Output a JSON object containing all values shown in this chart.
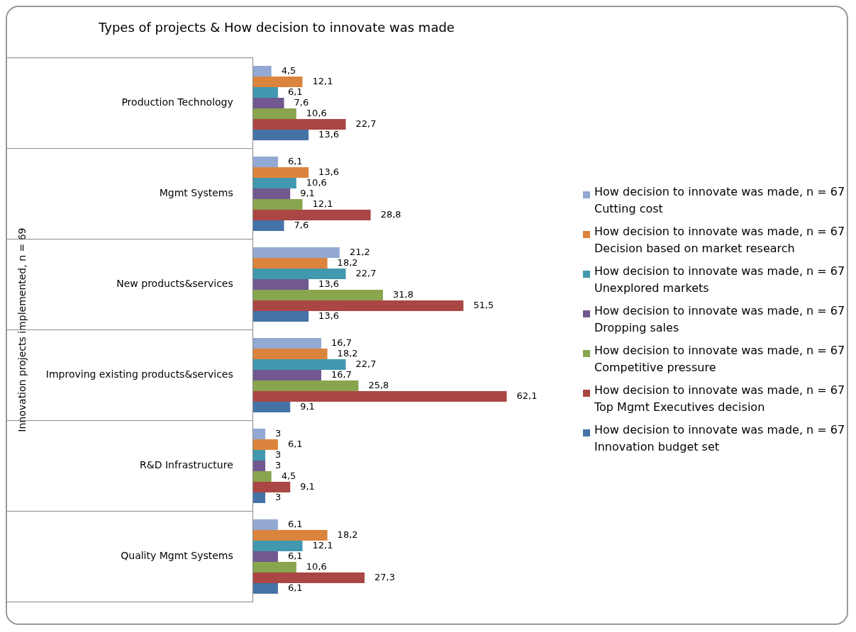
{
  "chart_data": {
    "type": "bar",
    "orientation": "horizontal",
    "title": "Types of projects & How decision to innovate was made",
    "ylabel": "Innovation projects implemented, n = 69",
    "categories": [
      "Production Technology",
      "Mgmt Systems",
      "New products&services",
      "Improving existing products&services",
      "R&D Infrastructure",
      "Quality Mgmt Systems"
    ],
    "legend": "right",
    "grid": "y",
    "series": [
      {
        "name": "How decision to innovate was made, n = 67\nCutting cost",
        "color": "#93a9d3",
        "values": [
          4.5,
          6.1,
          21.2,
          16.7,
          3,
          6.1
        ],
        "value_labels": [
          "4,5",
          "6,1",
          "21,2",
          "16,7",
          "3",
          "6,1"
        ]
      },
      {
        "name": "How decision to innovate was made, n = 67\nDecision based on market research",
        "color": "#db843d",
        "values": [
          12.1,
          13.6,
          18.2,
          18.2,
          6.1,
          18.2
        ],
        "value_labels": [
          "12,1",
          "13,6",
          "18,2",
          "18,2",
          "6,1",
          "18,2"
        ]
      },
      {
        "name": "How decision to innovate was made, n = 67\nUnexplored markets",
        "color": "#4198af",
        "values": [
          6.1,
          10.6,
          22.7,
          22.7,
          3,
          12.1
        ],
        "value_labels": [
          "6,1",
          "10,6",
          "22,7",
          "22,7",
          "3",
          "12,1"
        ]
      },
      {
        "name": "How decision to innovate was made, n = 67\nDropping sales",
        "color": "#71588f",
        "values": [
          7.6,
          9.1,
          13.6,
          16.7,
          3,
          6.1
        ],
        "value_labels": [
          "7,6",
          "9,1",
          "13,6",
          "16,7",
          "3",
          "6,1"
        ]
      },
      {
        "name": "How decision to innovate was made, n = 67\nCompetitive pressure",
        "color": "#89a54e",
        "values": [
          10.6,
          12.1,
          31.8,
          25.8,
          4.5,
          10.6
        ],
        "value_labels": [
          "10,6",
          "12,1",
          "31,8",
          "25,8",
          "4,5",
          "10,6"
        ]
      },
      {
        "name": "How decision to innovate was made, n = 67\nTop Mgmt Executives decision",
        "color": "#aa4643",
        "values": [
          22.7,
          28.8,
          51.5,
          62.1,
          9.1,
          27.3
        ],
        "value_labels": [
          "22,7",
          "28,8",
          "51,5",
          "62,1",
          "9,1",
          "27,3"
        ]
      },
      {
        "name": "How decision to innovate was made, n = 67\nInnovation budget set",
        "color": "#4572a7",
        "values": [
          13.6,
          7.6,
          13.6,
          9.1,
          3,
          6.1
        ],
        "value_labels": [
          "13,6",
          "7,6",
          "13,6",
          "9,1",
          "3",
          "6,1"
        ]
      }
    ]
  }
}
